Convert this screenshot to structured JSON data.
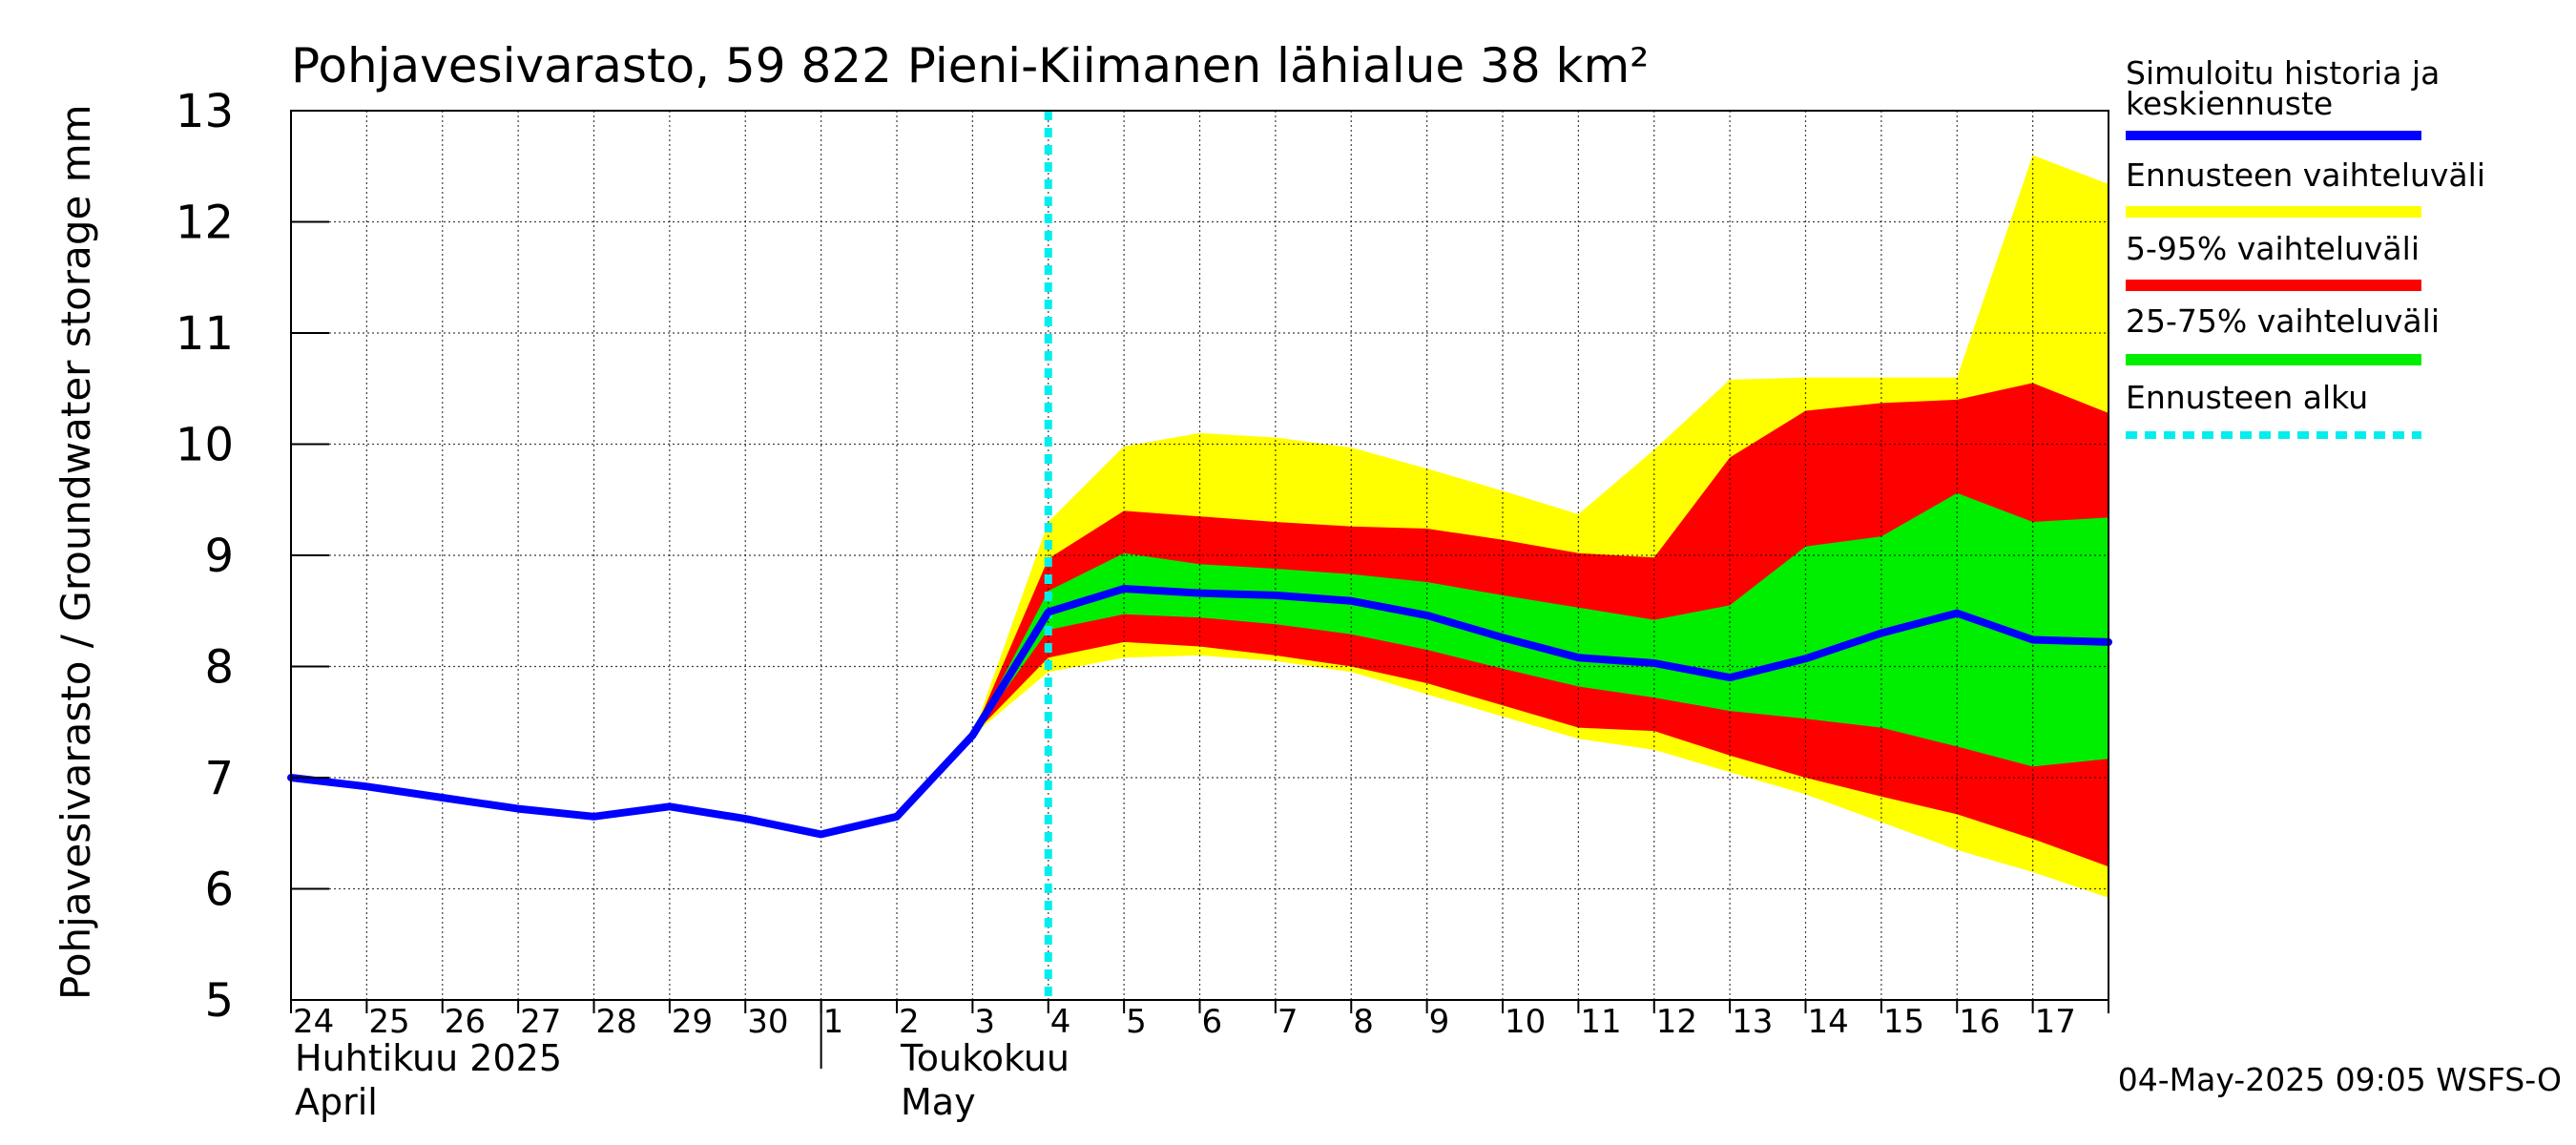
{
  "chart_data": {
    "type": "area",
    "title": "Pohjavesivarasto, 59 822 Pieni-Kiimanen lähialue 38 km²",
    "ylabel": "Pohjavesivarasto / Groundwater storage   mm",
    "ylim": [
      5,
      13
    ],
    "yticks": [
      5,
      6,
      7,
      8,
      9,
      10,
      11,
      12,
      13
    ],
    "grid": true,
    "legend_placement": "right",
    "x_day_labels": [
      "24",
      "25",
      "26",
      "27",
      "28",
      "29",
      "30",
      "1",
      "2",
      "3",
      "4",
      "5",
      "6",
      "7",
      "8",
      "9",
      "10",
      "11",
      "12",
      "13",
      "14",
      "15",
      "16",
      "17"
    ],
    "month_labels": [
      {
        "fi": "Huhtikuu  2025",
        "en": "April"
      },
      {
        "fi": "Toukokuu",
        "en": "May"
      }
    ],
    "forecast_start": "2025-05-04 00:00",
    "timestamp": "04-May-2025 09:05 WSFS-O",
    "series": {
      "history": {
        "name": "Simuloitu historia ja keskiennuste",
        "color": "#0000ff",
        "x": [
          "2025-04-24",
          "2025-04-25",
          "2025-04-26",
          "2025-04-27",
          "2025-04-28",
          "2025-04-29",
          "2025-04-30",
          "2025-05-01",
          "2025-05-02",
          "2025-05-03",
          "2025-05-04",
          "2025-05-05",
          "2025-05-06",
          "2025-05-07",
          "2025-05-08",
          "2025-05-09",
          "2025-05-10",
          "2025-05-11",
          "2025-05-12",
          "2025-05-13",
          "2025-05-14",
          "2025-05-15",
          "2025-05-16",
          "2025-05-17",
          "2025-05-18"
        ],
        "y": [
          7.0,
          6.92,
          6.82,
          6.72,
          6.65,
          6.74,
          6.63,
          6.49,
          6.65,
          7.38,
          8.49,
          8.7,
          8.66,
          8.64,
          8.59,
          8.46,
          8.26,
          8.08,
          8.03,
          7.9,
          8.07,
          8.3,
          8.48,
          8.24,
          8.22
        ]
      },
      "bands": {
        "x": [
          "2025-05-03",
          "2025-05-04",
          "2025-05-05",
          "2025-05-06",
          "2025-05-07",
          "2025-05-08",
          "2025-05-09",
          "2025-05-10",
          "2025-05-11",
          "2025-05-12",
          "2025-05-13",
          "2025-05-14",
          "2025-05-15",
          "2025-05-16",
          "2025-05-17",
          "2025-05-18"
        ],
        "range": {
          "name": "Ennusteen vaihteluväli",
          "color": "#ffff00",
          "upper": [
            7.38,
            9.3,
            9.98,
            10.1,
            10.06,
            9.97,
            9.78,
            9.58,
            9.37,
            9.95,
            10.58,
            10.6,
            10.6,
            10.6,
            12.6,
            12.34
          ],
          "lower": [
            7.38,
            7.95,
            8.08,
            8.1,
            8.05,
            7.95,
            7.75,
            7.55,
            7.35,
            7.25,
            7.05,
            6.85,
            6.6,
            6.35,
            6.15,
            5.92
          ]
        },
        "p5_95": {
          "name": "5-95% vaihteluväli",
          "color": "#ff0000",
          "upper": [
            7.38,
            8.97,
            9.4,
            9.35,
            9.3,
            9.26,
            9.24,
            9.14,
            9.02,
            8.98,
            9.88,
            10.3,
            10.37,
            10.4,
            10.55,
            10.28
          ],
          "lower": [
            7.38,
            8.08,
            8.22,
            8.18,
            8.1,
            8.0,
            7.85,
            7.65,
            7.45,
            7.42,
            7.2,
            7.0,
            6.83,
            6.67,
            6.45,
            6.2
          ]
        },
        "p25_75": {
          "name": "25-75% vaihteluväli",
          "color": "#00ee00",
          "upper": [
            7.38,
            8.68,
            9.02,
            8.92,
            8.88,
            8.83,
            8.76,
            8.64,
            8.53,
            8.42,
            8.55,
            9.08,
            9.17,
            9.56,
            9.3,
            9.34
          ],
          "lower": [
            7.38,
            8.33,
            8.47,
            8.44,
            8.38,
            8.29,
            8.15,
            7.98,
            7.82,
            7.72,
            7.6,
            7.53,
            7.45,
            7.28,
            7.1,
            7.17
          ]
        }
      }
    },
    "legend": [
      {
        "label": "Simuloitu historia ja keskiennuste",
        "color": "#0000ff",
        "style": "solid"
      },
      {
        "label": "Ennusteen vaihteluväli",
        "color": "#ffff00",
        "style": "solid"
      },
      {
        "label": "5-95% vaihteluväli",
        "color": "#ff0000",
        "style": "solid"
      },
      {
        "label": "25-75% vaihteluväli",
        "color": "#00ee00",
        "style": "solid"
      },
      {
        "label": "Ennusteen alku",
        "color": "#00eeee",
        "style": "dashed"
      }
    ]
  }
}
